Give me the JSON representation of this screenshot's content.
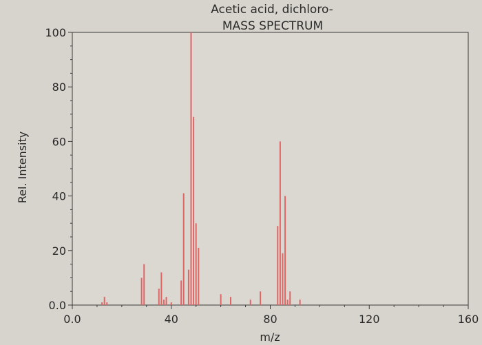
{
  "chart_data": {
    "type": "bar",
    "title": "Acetic acid, dichloro-",
    "subtitle": "MASS SPECTRUM",
    "xlabel": "m/z",
    "ylabel": "Rel. Intensity",
    "xlim": [
      0,
      160
    ],
    "ylim": [
      0,
      100
    ],
    "x_ticks": [
      0,
      40,
      80,
      120,
      160
    ],
    "x_tick_labels": [
      "0.0",
      "40",
      "80",
      "120",
      "160"
    ],
    "y_ticks": [
      0,
      20,
      40,
      60,
      80,
      100
    ],
    "y_tick_labels": [
      "0.0",
      "20",
      "40",
      "60",
      "80",
      "100"
    ],
    "grid": false,
    "legend": "none",
    "bar_color": "#e06666",
    "x": [
      12,
      13,
      14,
      28,
      29,
      35,
      36,
      37,
      38,
      40,
      44,
      45,
      47,
      48,
      49,
      50,
      51,
      60,
      64,
      72,
      76,
      83,
      84,
      85,
      86,
      87,
      88,
      92
    ],
    "values": [
      1,
      3,
      1,
      10,
      15,
      6,
      12,
      2,
      3,
      1,
      9,
      41,
      13,
      100,
      69,
      30,
      21,
      4,
      3,
      2,
      5,
      29,
      60,
      19,
      40,
      2,
      5,
      2
    ]
  }
}
